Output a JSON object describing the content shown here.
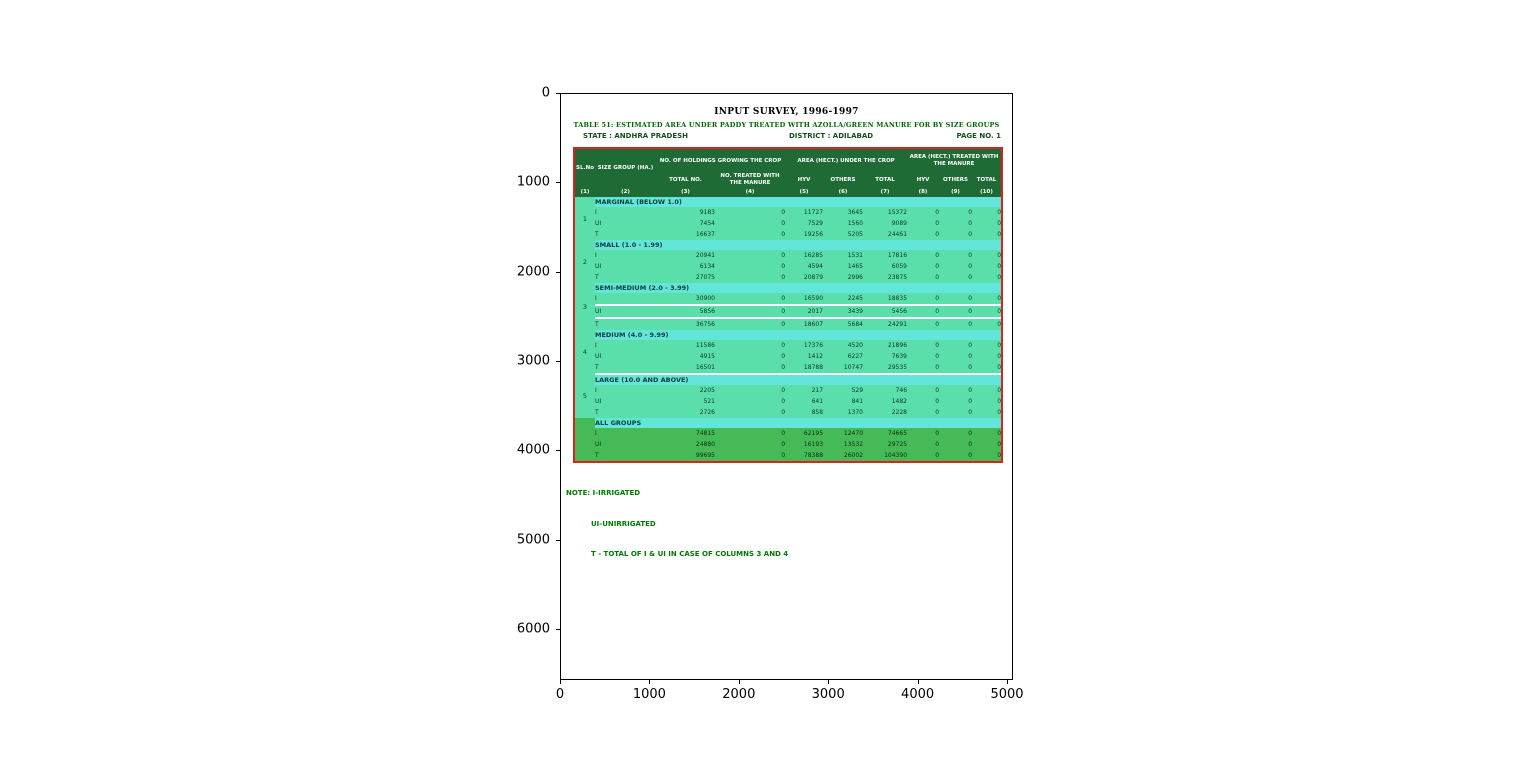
{
  "figure": {
    "x_tick_labels": [
      "0",
      "1000",
      "2000",
      "3000",
      "4000",
      "5000"
    ],
    "y_tick_labels": [
      "0",
      "1000",
      "2000",
      "3000",
      "4000",
      "5000",
      "6000"
    ]
  },
  "document": {
    "title": "INPUT SURVEY, 1996-1997",
    "subtitle": "TABLE 51: ESTIMATED AREA UNDER PADDY TREATED WITH AZOLLA/GREEN MANURE FOR BY SIZE GROUPS",
    "state_label": "STATE : ANDHRA PRADESH",
    "district_label": "DISTRICT : ADILABAD",
    "page_label": "PAGE NO. 1",
    "note_line1": "NOTE: I-IRRIGATED",
    "note_line2": "UI-UNIRRIGATED",
    "note_line3": "T - TOTAL OF I & UI IN CASE OF COLUMNS 3 AND 4"
  },
  "table_header": {
    "sl_no": "SL.No",
    "size_group": "SIZE GROUP (HA.)",
    "group_holdings": "NO. OF HOLDINGS GROWING THE CROP",
    "sub_total_no": "TOTAL NO.",
    "sub_treated": "NO. TREATED WITH THE MANURE",
    "group_area_crop": "AREA (HECT.) UNDER THE CROP",
    "group_area_treated": "AREA (HECT.) TREATED WITH THE MANURE",
    "sub_hyv": "HYV",
    "sub_others": "OTHERS",
    "sub_total": "TOTAL",
    "col_numbers": [
      "(1)",
      "(2)",
      "(3)",
      "(4)",
      "(5)",
      "(6)",
      "(7)",
      "(8)",
      "(9)",
      "(10)"
    ]
  },
  "chart_data": {
    "type": "table",
    "title": "INPUT SURVEY, 1996-1997 — TABLE 51, ANDHRA PRADESH, ADILABAD",
    "columns": [
      "SL.No",
      "SIZE GROUP (HA.)",
      "TOTAL NO.",
      "NO. TREATED WITH THE MANURE",
      "HYV (CROP)",
      "OTHERS (CROP)",
      "TOTAL (CROP)",
      "HYV (TREATED)",
      "OTHERS (TREATED)",
      "TOTAL (TREATED)"
    ],
    "row_types": [
      "I",
      "UI",
      "T"
    ],
    "groups": [
      {
        "sl": "1",
        "label": "MARGINAL (BELOW 1.0)",
        "rows": [
          {
            "label": "I",
            "values": [
              "9183",
              "0",
              "11727",
              "3645",
              "15372",
              "0",
              "0",
              "0"
            ]
          },
          {
            "label": "UI",
            "values": [
              "7454",
              "0",
              "7529",
              "1560",
              "9089",
              "0",
              "0",
              "0"
            ]
          },
          {
            "label": "T",
            "values": [
              "16637",
              "0",
              "19256",
              "5205",
              "24461",
              "0",
              "0",
              "0"
            ]
          }
        ]
      },
      {
        "sl": "2",
        "label": "SMALL (1.0 - 1.99)",
        "rows": [
          {
            "label": "I",
            "values": [
              "20941",
              "0",
              "16285",
              "1531",
              "17816",
              "0",
              "0",
              "0"
            ]
          },
          {
            "label": "UI",
            "values": [
              "6134",
              "0",
              "4594",
              "1465",
              "6059",
              "0",
              "0",
              "0"
            ]
          },
          {
            "label": "T",
            "values": [
              "27075",
              "0",
              "20879",
              "2996",
              "23875",
              "0",
              "0",
              "0"
            ]
          }
        ]
      },
      {
        "sl": "3",
        "label": "SEMI-MEDIUM (2.0 - 3.99)",
        "rows": [
          {
            "label": "I",
            "values": [
              "30900",
              "0",
              "16590",
              "2245",
              "18835",
              "0",
              "0",
              "0"
            ]
          },
          {
            "label": "UI",
            "values": [
              "5856",
              "0",
              "2017",
              "3439",
              "5456",
              "0",
              "0",
              "0"
            ]
          },
          {
            "label": "T",
            "values": [
              "36756",
              "0",
              "18607",
              "5684",
              "24291",
              "0",
              "0",
              "0"
            ]
          }
        ]
      },
      {
        "sl": "4",
        "label": "MEDIUM (4.0 - 9.99)",
        "rows": [
          {
            "label": "I",
            "values": [
              "11586",
              "0",
              "17376",
              "4520",
              "21896",
              "0",
              "0",
              "0"
            ]
          },
          {
            "label": "UI",
            "values": [
              "4915",
              "0",
              "1412",
              "6227",
              "7639",
              "0",
              "0",
              "0"
            ]
          },
          {
            "label": "T",
            "values": [
              "16501",
              "0",
              "18788",
              "10747",
              "29535",
              "0",
              "0",
              "0"
            ]
          }
        ]
      },
      {
        "sl": "5",
        "label": "LARGE (10.0 AND ABOVE)",
        "rows": [
          {
            "label": "I",
            "values": [
              "2205",
              "0",
              "217",
              "529",
              "746",
              "0",
              "0",
              "0"
            ]
          },
          {
            "label": "UI",
            "values": [
              "521",
              "0",
              "641",
              "841",
              "1482",
              "0",
              "0",
              "0"
            ]
          },
          {
            "label": "T",
            "values": [
              "2726",
              "0",
              "858",
              "1370",
              "2228",
              "0",
              "0",
              "0"
            ]
          }
        ]
      },
      {
        "sl": "",
        "label": "ALL GROUPS",
        "all": true,
        "rows": [
          {
            "label": "I",
            "values": [
              "74815",
              "0",
              "62195",
              "12470",
              "74665",
              "0",
              "0",
              "0"
            ]
          },
          {
            "label": "UI",
            "values": [
              "24880",
              "0",
              "16193",
              "13532",
              "29725",
              "0",
              "0",
              "0"
            ]
          },
          {
            "label": "T",
            "values": [
              "99695",
              "0",
              "78388",
              "26002",
              "104390",
              "0",
              "0",
              "0"
            ]
          }
        ]
      }
    ]
  },
  "colors": {
    "table_border": "#dd2020",
    "header_bg": "#1e6b35",
    "band_bg": "#63e6da",
    "body_bg": "#5bdfaa",
    "all_groups_bg": "#47ba58",
    "subtitle_text": "#006400",
    "note_text": "#007a00"
  }
}
